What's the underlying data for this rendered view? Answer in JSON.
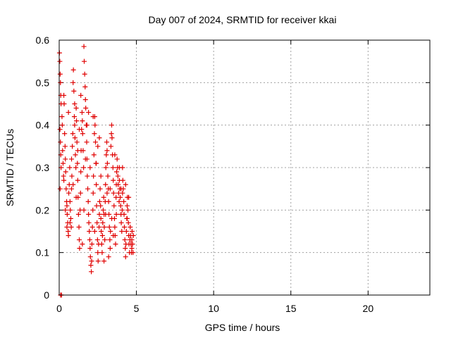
{
  "chart_data": {
    "type": "scatter",
    "title": "Day 007 of 2024, SRMTID for receiver kkai",
    "xlabel": "GPS time / hours",
    "ylabel": "SRMTID / TECUs",
    "xlim": [
      0,
      24
    ],
    "ylim": [
      0,
      0.6
    ],
    "xticks": [
      0,
      5,
      10,
      15,
      20
    ],
    "xtick_labels": [
      "0",
      "5",
      "10",
      "15",
      "20"
    ],
    "yticks": [
      0,
      0.1,
      0.2,
      0.3,
      0.4,
      0.5,
      0.6
    ],
    "ytick_labels": [
      "0",
      "0.1",
      "0.2",
      "0.3",
      "0.4",
      "0.5",
      "0.6"
    ],
    "grid": true,
    "marker": "+",
    "marker_color": "#e00000",
    "series": [
      {
        "name": "SRMTID",
        "points": [
          [
            0.02,
            0.57
          ],
          [
            0.04,
            0.55
          ],
          [
            0.06,
            0.52
          ],
          [
            0.08,
            0.5
          ],
          [
            0.1,
            0.47
          ],
          [
            0.12,
            0.45
          ],
          [
            0.05,
            0.39
          ],
          [
            0.08,
            0.36
          ],
          [
            0.1,
            0.33
          ],
          [
            0.12,
            0.3
          ],
          [
            0.06,
            0.25
          ],
          [
            0.09,
            0.0
          ],
          [
            0.15,
            0.0
          ],
          [
            0.18,
            0.42
          ],
          [
            0.2,
            0.4
          ],
          [
            0.22,
            0.34
          ],
          [
            0.25,
            0.31
          ],
          [
            0.28,
            0.28
          ],
          [
            0.3,
            0.27
          ],
          [
            0.32,
            0.45
          ],
          [
            0.35,
            0.38
          ],
          [
            0.38,
            0.35
          ],
          [
            0.4,
            0.32
          ],
          [
            0.42,
            0.29
          ],
          [
            0.45,
            0.25
          ],
          [
            0.48,
            0.22
          ],
          [
            0.5,
            0.21
          ],
          [
            0.52,
            0.19
          ],
          [
            0.55,
            0.17
          ],
          [
            0.58,
            0.15
          ],
          [
            0.6,
            0.14
          ],
          [
            0.62,
            0.24
          ],
          [
            0.65,
            0.26
          ],
          [
            0.68,
            0.3
          ],
          [
            0.7,
            0.22
          ],
          [
            0.72,
            0.2
          ],
          [
            0.75,
            0.18
          ],
          [
            0.78,
            0.16
          ],
          [
            0.8,
            0.25
          ],
          [
            0.82,
            0.28
          ],
          [
            0.85,
            0.35
          ],
          [
            0.88,
            0.38
          ],
          [
            0.9,
            0.5
          ],
          [
            0.92,
            0.53
          ],
          [
            0.95,
            0.48
          ],
          [
            0.98,
            0.42
          ],
          [
            1.0,
            0.4
          ],
          [
            1.02,
            0.37
          ],
          [
            1.05,
            0.33
          ],
          [
            1.08,
            0.3
          ],
          [
            1.1,
            0.44
          ],
          [
            1.12,
            0.41
          ],
          [
            1.15,
            0.36
          ],
          [
            1.18,
            0.31
          ],
          [
            1.2,
            0.27
          ],
          [
            1.22,
            0.23
          ],
          [
            1.25,
            0.19
          ],
          [
            1.28,
            0.16
          ],
          [
            1.3,
            0.13
          ],
          [
            1.32,
            0.11
          ],
          [
            1.35,
            0.2
          ],
          [
            1.38,
            0.24
          ],
          [
            1.4,
            0.29
          ],
          [
            1.42,
            0.34
          ],
          [
            1.45,
            0.39
          ],
          [
            1.48,
            0.43
          ],
          [
            1.5,
            0.41
          ],
          [
            1.52,
            0.38
          ],
          [
            1.55,
            0.34
          ],
          [
            1.58,
            0.3
          ],
          [
            1.6,
            0.585
          ],
          [
            1.62,
            0.55
          ],
          [
            1.65,
            0.52
          ],
          [
            1.68,
            0.49
          ],
          [
            1.7,
            0.46
          ],
          [
            1.72,
            0.44
          ],
          [
            1.75,
            0.4
          ],
          [
            1.78,
            0.36
          ],
          [
            1.8,
            0.32
          ],
          [
            1.82,
            0.28
          ],
          [
            1.85,
            0.25
          ],
          [
            1.88,
            0.22
          ],
          [
            1.9,
            0.19
          ],
          [
            1.92,
            0.17
          ],
          [
            1.95,
            0.15
          ],
          [
            1.98,
            0.13
          ],
          [
            2.0,
            0.11
          ],
          [
            2.02,
            0.09
          ],
          [
            2.05,
            0.07
          ],
          [
            2.08,
            0.055
          ],
          [
            2.1,
            0.08
          ],
          [
            2.12,
            0.12
          ],
          [
            2.15,
            0.16
          ],
          [
            2.18,
            0.2
          ],
          [
            2.2,
            0.24
          ],
          [
            2.22,
            0.28
          ],
          [
            2.25,
            0.33
          ],
          [
            2.28,
            0.38
          ],
          [
            2.3,
            0.42
          ],
          [
            2.32,
            0.4
          ],
          [
            2.35,
            0.36
          ],
          [
            2.38,
            0.31
          ],
          [
            2.4,
            0.26
          ],
          [
            2.42,
            0.21
          ],
          [
            2.45,
            0.17
          ],
          [
            2.48,
            0.13
          ],
          [
            2.5,
            0.1
          ],
          [
            2.52,
            0.08
          ],
          [
            2.55,
            0.12
          ],
          [
            2.58,
            0.16
          ],
          [
            2.6,
            0.19
          ],
          [
            2.62,
            0.22
          ],
          [
            2.65,
            0.25
          ],
          [
            2.68,
            0.21
          ],
          [
            2.7,
            0.18
          ],
          [
            2.72,
            0.15
          ],
          [
            2.75,
            0.12
          ],
          [
            2.78,
            0.1
          ],
          [
            2.8,
            0.14
          ],
          [
            2.82,
            0.17
          ],
          [
            2.85,
            0.2
          ],
          [
            2.88,
            0.23
          ],
          [
            2.9,
            0.19
          ],
          [
            2.92,
            0.16
          ],
          [
            2.95,
            0.13
          ],
          [
            2.98,
            0.22
          ],
          [
            3.0,
            0.26
          ],
          [
            3.02,
            0.3
          ],
          [
            3.05,
            0.33
          ],
          [
            3.08,
            0.36
          ],
          [
            3.1,
            0.34
          ],
          [
            3.12,
            0.31
          ],
          [
            3.15,
            0.28
          ],
          [
            3.18,
            0.25
          ],
          [
            3.2,
            0.22
          ],
          [
            3.22,
            0.19
          ],
          [
            3.25,
            0.16
          ],
          [
            3.28,
            0.13
          ],
          [
            3.3,
            0.11
          ],
          [
            3.32,
            0.15
          ],
          [
            3.35,
            0.35
          ],
          [
            3.38,
            0.38
          ],
          [
            3.4,
            0.4
          ],
          [
            3.42,
            0.37
          ],
          [
            3.45,
            0.33
          ],
          [
            3.48,
            0.3
          ],
          [
            3.5,
            0.27
          ],
          [
            3.52,
            0.24
          ],
          [
            3.55,
            0.21
          ],
          [
            3.58,
            0.18
          ],
          [
            3.6,
            0.16
          ],
          [
            3.62,
            0.14
          ],
          [
            3.65,
            0.12
          ],
          [
            3.68,
            0.23
          ],
          [
            3.7,
            0.26
          ],
          [
            3.72,
            0.29
          ],
          [
            3.75,
            0.32
          ],
          [
            3.78,
            0.3
          ],
          [
            3.8,
            0.28
          ],
          [
            3.82,
            0.26
          ],
          [
            3.85,
            0.24
          ],
          [
            3.88,
            0.22
          ],
          [
            3.9,
            0.27
          ],
          [
            3.92,
            0.25
          ],
          [
            3.95,
            0.23
          ],
          [
            3.98,
            0.21
          ],
          [
            4.0,
            0.19
          ],
          [
            4.02,
            0.17
          ],
          [
            4.05,
            0.15
          ],
          [
            4.08,
            0.2
          ],
          [
            4.1,
            0.24
          ],
          [
            4.12,
            0.27
          ],
          [
            4.15,
            0.25
          ],
          [
            4.18,
            0.22
          ],
          [
            4.2,
            0.19
          ],
          [
            4.22,
            0.16
          ],
          [
            4.25,
            0.13
          ],
          [
            4.28,
            0.11
          ],
          [
            4.3,
            0.09
          ],
          [
            4.32,
            0.12
          ],
          [
            4.35,
            0.15
          ],
          [
            4.38,
            0.18
          ],
          [
            4.4,
            0.21
          ],
          [
            4.42,
            0.23
          ],
          [
            4.45,
            0.2
          ],
          [
            4.48,
            0.17
          ],
          [
            4.5,
            0.14
          ],
          [
            4.52,
            0.12
          ],
          [
            4.55,
            0.1
          ],
          [
            4.58,
            0.13
          ],
          [
            4.6,
            0.16
          ],
          [
            4.62,
            0.14
          ],
          [
            4.65,
            0.12
          ],
          [
            4.68,
            0.1
          ],
          [
            4.7,
            0.13
          ],
          [
            4.72,
            0.15
          ],
          [
            4.75,
            0.12
          ],
          [
            4.78,
            0.1
          ],
          [
            4.8,
            0.14
          ],
          [
            0.3,
            0.47
          ],
          [
            0.6,
            0.43
          ],
          [
            1.0,
            0.45
          ],
          [
            1.4,
            0.47
          ],
          [
            1.9,
            0.43
          ],
          [
            2.2,
            0.42
          ],
          [
            0.9,
            0.26
          ],
          [
            1.2,
            0.34
          ],
          [
            1.7,
            0.32
          ],
          [
            2.5,
            0.35
          ],
          [
            3.0,
            0.19
          ],
          [
            3.3,
            0.25
          ],
          [
            3.6,
            0.33
          ],
          [
            3.9,
            0.3
          ],
          [
            4.1,
            0.3
          ],
          [
            4.3,
            0.26
          ],
          [
            4.5,
            0.23
          ],
          [
            0.4,
            0.2
          ],
          [
            0.7,
            0.17
          ],
          [
            1.1,
            0.23
          ],
          [
            1.6,
            0.2
          ],
          [
            2.0,
            0.3
          ],
          [
            2.4,
            0.31
          ],
          [
            2.7,
            0.28
          ],
          [
            3.1,
            0.24
          ],
          [
            3.4,
            0.18
          ],
          [
            3.7,
            0.19
          ],
          [
            4.0,
            0.25
          ],
          [
            4.4,
            0.18
          ],
          [
            4.7,
            0.11
          ],
          [
            2.9,
            0.08
          ],
          [
            3.2,
            0.09
          ],
          [
            3.5,
            0.14
          ],
          [
            2.3,
            0.15
          ],
          [
            1.5,
            0.12
          ],
          [
            0.5,
            0.16
          ],
          [
            0.8,
            0.32
          ],
          [
            1.3,
            0.39
          ],
          [
            1.8,
            0.4
          ],
          [
            2.6,
            0.37
          ]
        ]
      }
    ]
  }
}
